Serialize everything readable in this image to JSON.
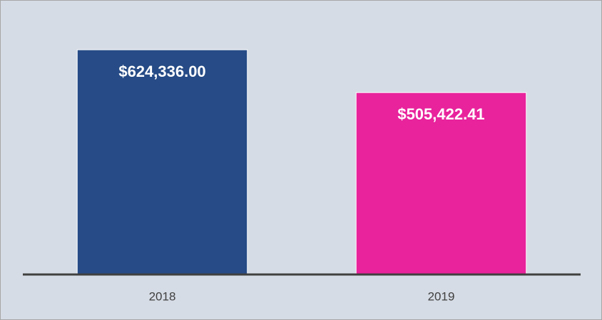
{
  "chart_data": {
    "type": "bar",
    "categories": [
      "2018",
      "2019"
    ],
    "values": [
      624336.0,
      505422.41
    ],
    "value_labels": [
      "$624,336.00",
      "$505,422.41"
    ],
    "colors": [
      "#264b86",
      "#e8239c"
    ]
  }
}
